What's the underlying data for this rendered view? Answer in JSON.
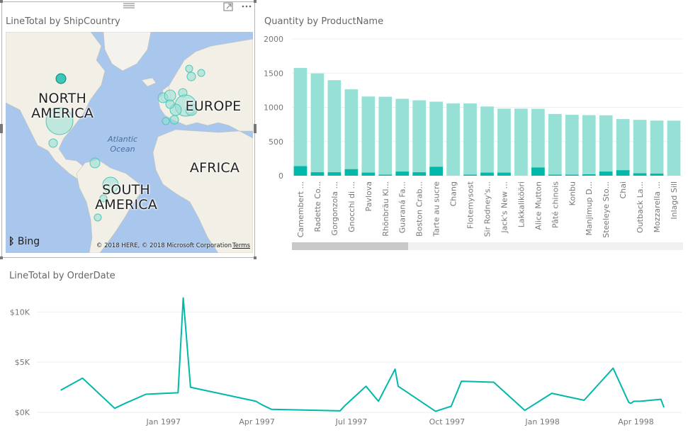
{
  "map": {
    "title": "LineTotal by ShipCountry",
    "labels": {
      "north_america": "NORTH\nAMERICA",
      "europe": "EUROPE",
      "africa": "AFRICA",
      "south_america": "SOUTH\nAMERICA",
      "ocean": "Atlantic\nOcean"
    },
    "bing": "Bing",
    "copyright": "© 2018 HERE, © 2018 Microsoft Corporation",
    "terms": "Terms",
    "icons": {
      "focus": "focus-mode-icon",
      "more": "more-options-icon",
      "drag": "drag-handle-icon"
    }
  },
  "bar": {
    "title": "Quantity by ProductName",
    "colors": {
      "light": "#96e0d5",
      "dark": "#01b8aa"
    }
  },
  "line": {
    "title": "LineTotal by OrderDate",
    "color": "#01b8aa"
  },
  "chart_data": [
    {
      "type": "bar",
      "title": "Quantity by ProductName",
      "ylim": [
        0,
        2000
      ],
      "yticks": [
        0,
        500,
        1000,
        1500,
        2000
      ],
      "categories": [
        "Camembert ...",
        "Radette Co...",
        "Gorgonzola ...",
        "Gnocchi di ...",
        "Pavlova",
        "Rhönbräu Kl...",
        "Guaraná Fa...",
        "Boston Crab...",
        "Tarte au sucre",
        "Chang",
        "Flotemysost",
        "Sir Rodney's...",
        "Jack's New ...",
        "Lakkalikööri",
        "Alice Mutton",
        "Pâté chinois",
        "Konbu",
        "Manjimup D...",
        "Steeleye Sto...",
        "Chai",
        "Outback La...",
        "Mozzarella ...",
        "Inlagd Sill"
      ],
      "series": [
        {
          "values": [
            1577,
            1496,
            1397,
            1263,
            1158,
            1155,
            1125,
            1103,
            1083,
            1057,
            1057,
            1012,
            981,
            981,
            978,
            903,
            891,
            886,
            883,
            828,
            817,
            806,
            805
          ]
        },
        {
          "values": [
            140,
            50,
            50,
            95,
            45,
            15,
            60,
            50,
            130,
            0,
            15,
            45,
            45,
            0,
            120,
            15,
            15,
            20,
            60,
            80,
            35,
            30,
            0
          ]
        }
      ]
    },
    {
      "type": "line",
      "title": "LineTotal by OrderDate",
      "ylim": [
        0,
        12000
      ],
      "yticks": [
        {
          "value": 0,
          "label": "$0K"
        },
        {
          "value": 5000,
          "label": "$5K"
        },
        {
          "value": 10000,
          "label": "$10K"
        }
      ],
      "xticks": [
        "Jan 1997",
        "Apr 1997",
        "Jul 1997",
        "Oct 1997",
        "Jan 1998",
        "Apr 1998"
      ],
      "x": [
        "1996-09-24",
        "1996-10-15",
        "1996-11-15",
        "1996-11-25",
        "1996-12-15",
        "1996-12-25",
        "1997-01-15",
        "1997-01-20",
        "1997-01-27",
        "1997-03-31",
        "1997-04-05",
        "1997-04-15",
        "1997-06-20",
        "1997-06-25",
        "1997-07-15",
        "1997-07-27",
        "1997-08-12",
        "1997-08-15",
        "1997-09-20",
        "1997-10-05",
        "1997-10-15",
        "1997-11-15",
        "1997-12-15",
        "1998-01-10",
        "1998-02-10",
        "1998-03-10",
        "1998-03-25",
        "1998-03-27",
        "1998-03-30",
        "1998-04-05",
        "1998-04-15",
        "1998-04-25",
        "1998-04-28"
      ],
      "y": [
        2200,
        3400,
        400,
        900,
        1800,
        1850,
        1950,
        11400,
        2500,
        1100,
        800,
        300,
        150,
        700,
        2600,
        1100,
        4300,
        2600,
        100,
        600,
        3100,
        3000,
        200,
        1900,
        1200,
        4400,
        1000,
        900,
        1100,
        1100,
        1200,
        1300,
        500
      ]
    }
  ]
}
